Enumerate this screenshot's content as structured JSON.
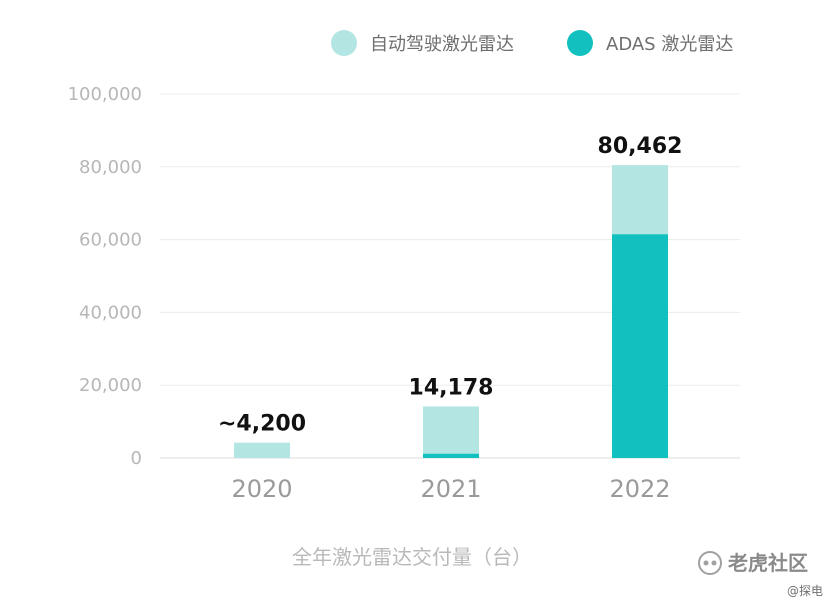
{
  "chart_data": {
    "type": "bar",
    "stacked": true,
    "categories": [
      "2020",
      "2021",
      "2022"
    ],
    "series": [
      {
        "name": "ADAS 激光雷达",
        "values": [
          0,
          1200,
          61500
        ],
        "color": "#12c0c0"
      },
      {
        "name": "自动驾驶激光雷达",
        "values": [
          4200,
          12978,
          18962
        ],
        "color": "#b3e6e3"
      }
    ],
    "total_labels": [
      "~4,200",
      "14,178",
      "80,462"
    ],
    "y_ticks": [
      "0",
      "20,000",
      "40,000",
      "60,000",
      "80,000",
      "100,000"
    ],
    "ylim": [
      0,
      100000
    ],
    "xlabel": "全年激光雷达交付量（台）",
    "ylabel": "",
    "title": "",
    "grid": true,
    "legend_position": "top-right",
    "legend_order": [
      "自动驾驶激光雷达",
      "ADAS 激光雷达"
    ]
  },
  "watermark": {
    "brand": "老虎社区",
    "handle": "@探电"
  }
}
